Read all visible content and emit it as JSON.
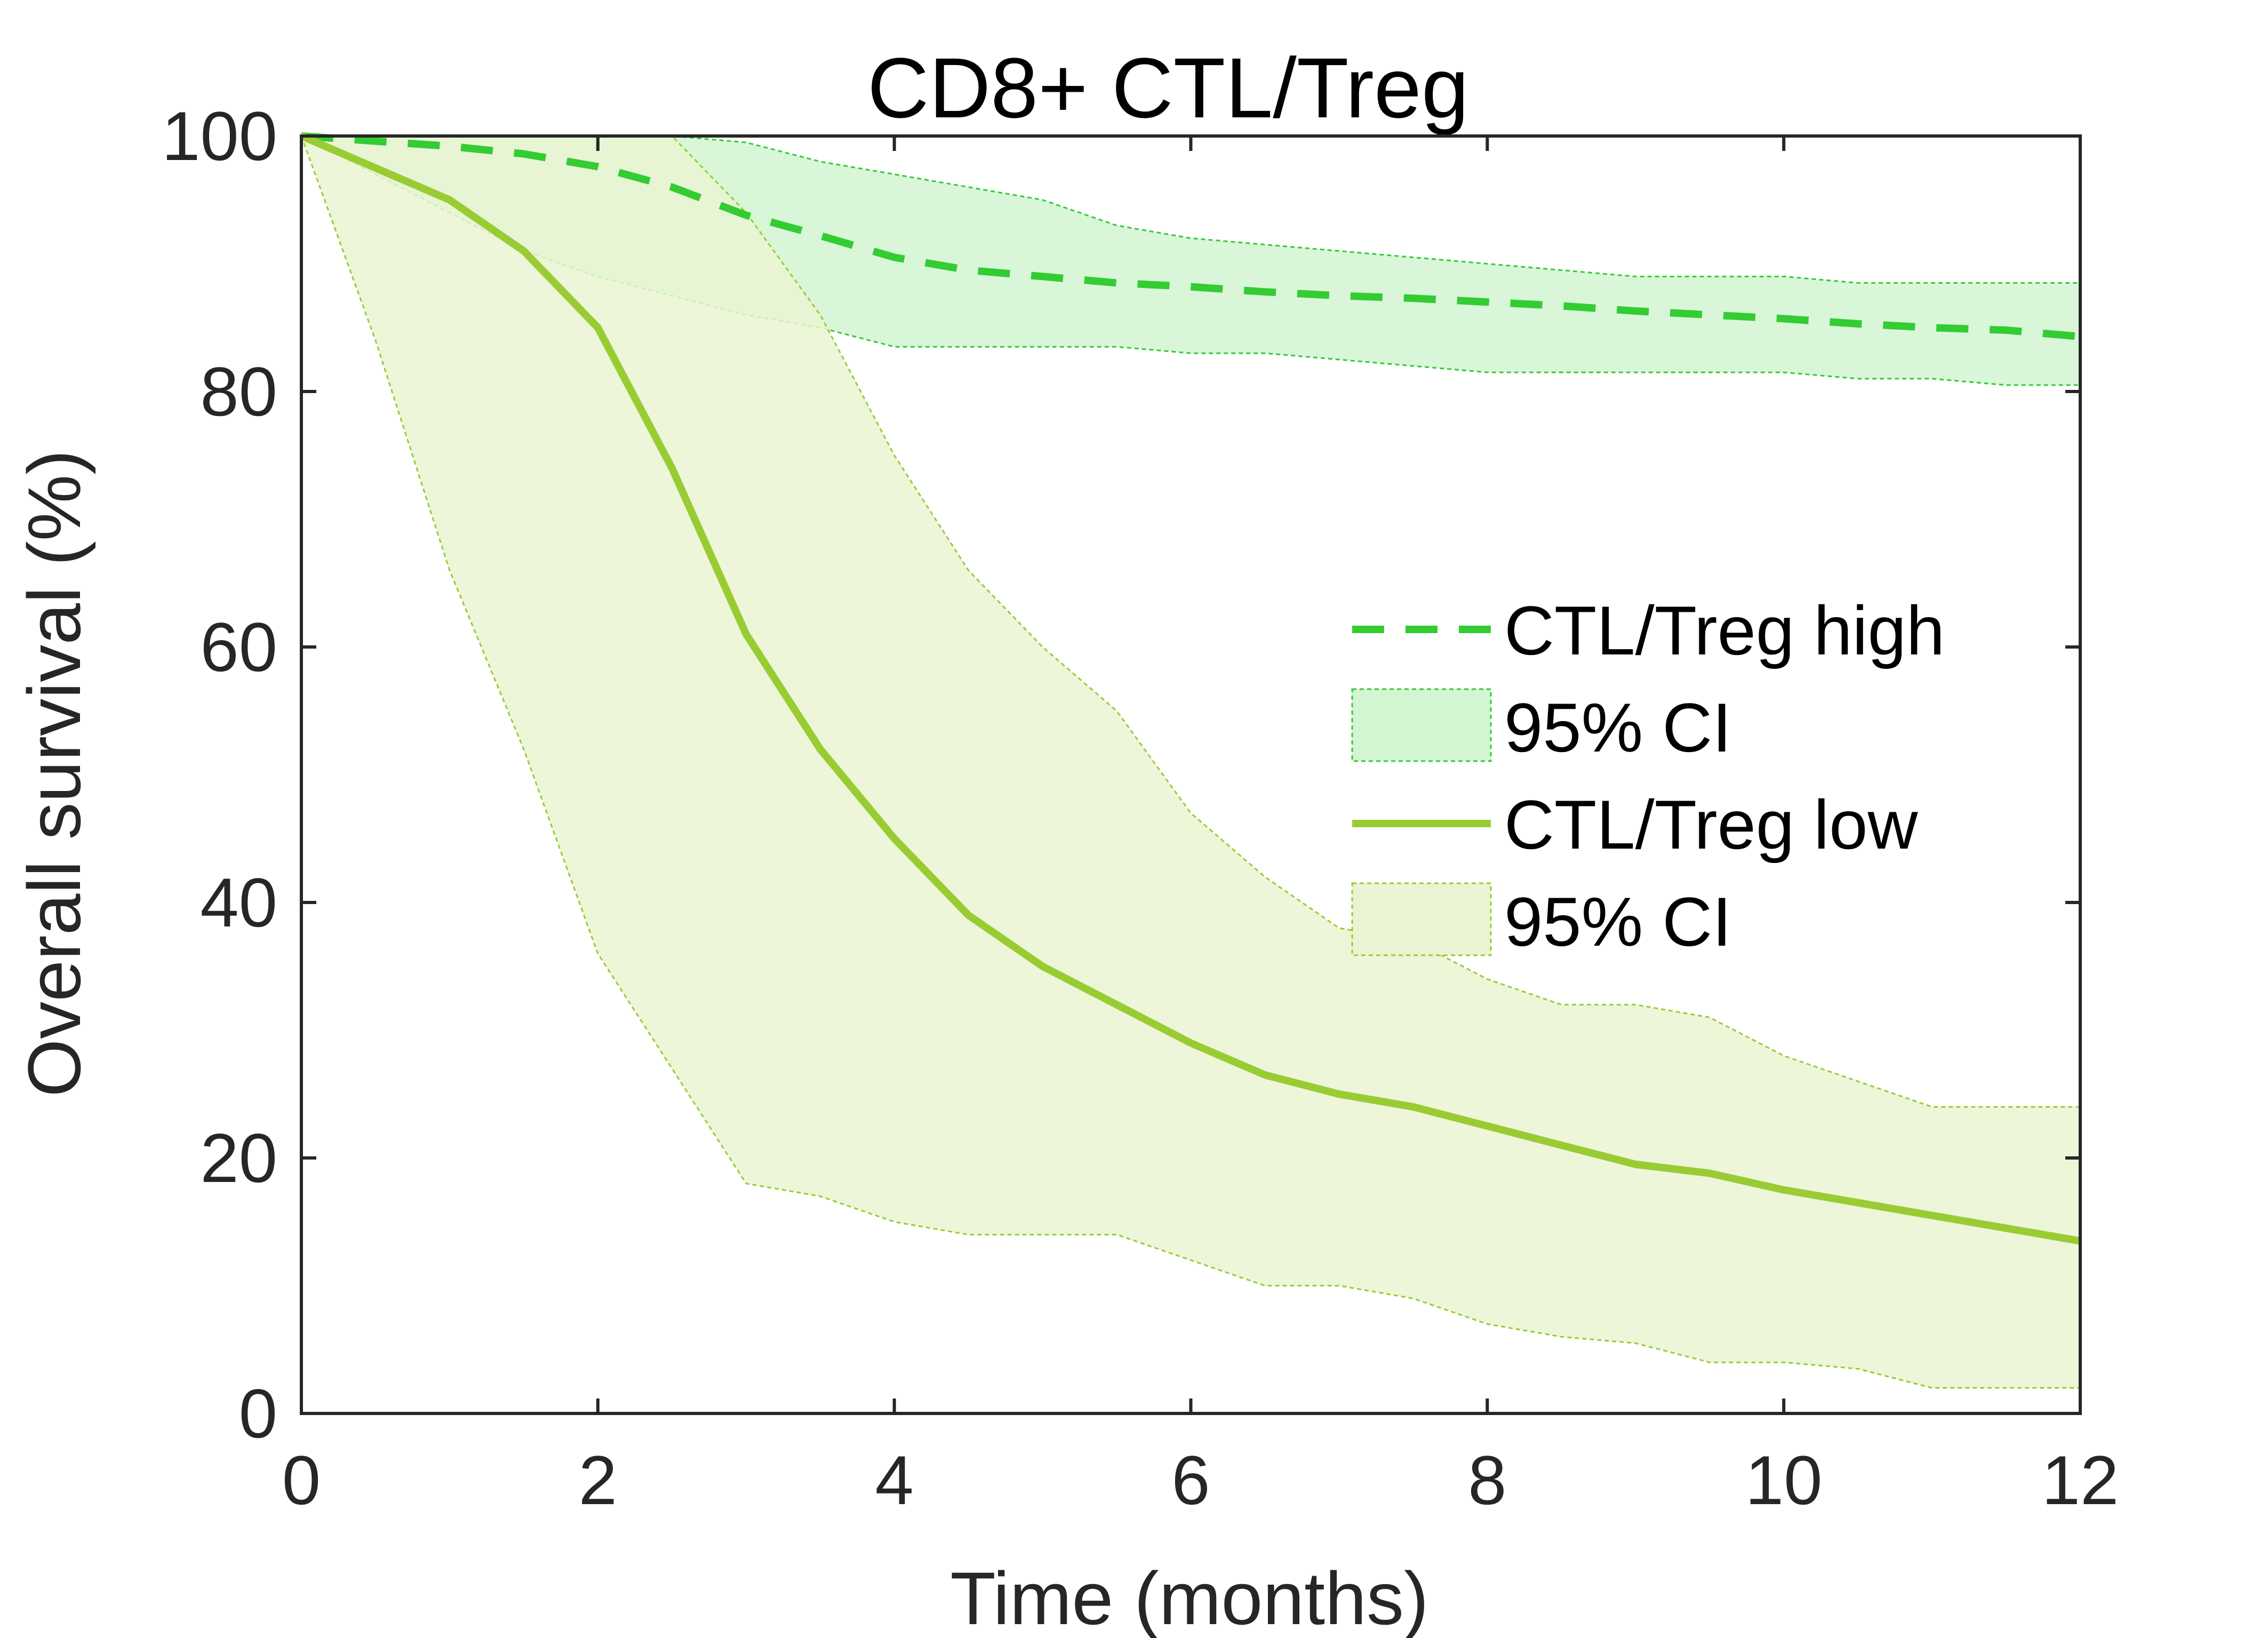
{
  "chart_data": {
    "type": "line",
    "title": "CD8+ CTL/Treg",
    "xlabel": "Time (months)",
    "ylabel": "Overall survival (%)",
    "xlim": [
      0,
      12
    ],
    "ylim": [
      0,
      100
    ],
    "xticks": [
      0,
      2,
      4,
      6,
      8,
      10,
      12
    ],
    "yticks": [
      0,
      20,
      40,
      60,
      80,
      100
    ],
    "grid": false,
    "legend_position": "right",
    "series": [
      {
        "name": "CTL/Treg high",
        "style": "dashed",
        "color": "#33CC33",
        "x": [
          0,
          0.5,
          1,
          1.5,
          2,
          2.5,
          3,
          3.5,
          4,
          4.5,
          5,
          5.5,
          6,
          6.5,
          7,
          7.5,
          8,
          8.5,
          9,
          9.5,
          10,
          10.5,
          11,
          11.5,
          12
        ],
        "y": [
          100,
          99.6,
          99.2,
          98.6,
          97.6,
          96,
          93.8,
          92.2,
          90.5,
          89.5,
          89,
          88.5,
          88.2,
          87.8,
          87.5,
          87.3,
          87,
          86.7,
          86.3,
          86,
          85.7,
          85.3,
          85,
          84.8,
          84.3
        ]
      },
      {
        "name": "95% CI",
        "style": "band",
        "color": "#D2F5D2",
        "x": [
          0,
          0.5,
          1,
          1.5,
          2,
          2.5,
          3,
          3.5,
          4,
          4.5,
          5,
          5.5,
          6,
          6.5,
          7,
          7.5,
          8,
          8.5,
          9,
          9.5,
          10,
          10.5,
          11,
          11.5,
          12
        ],
        "upper": [
          100,
          100,
          100,
          100,
          100,
          100,
          99.5,
          98,
          97,
          96,
          95,
          93,
          92,
          91.5,
          91,
          90.5,
          90,
          89.5,
          89,
          89,
          89,
          88.5,
          88.5,
          88.5,
          88.5
        ],
        "lower": [
          100,
          97,
          94,
          91,
          89,
          87.5,
          86,
          85,
          83.5,
          83.5,
          83.5,
          83.5,
          83,
          83,
          82.5,
          82,
          81.5,
          81.5,
          81.5,
          81.5,
          81.5,
          81,
          81,
          80.5,
          80.5
        ]
      },
      {
        "name": "CTL/Treg low",
        "style": "solid",
        "color": "#99CC33",
        "x": [
          0,
          0.5,
          1,
          1.5,
          2,
          2.5,
          3,
          3.5,
          4,
          4.5,
          5,
          5.5,
          6,
          6.5,
          7,
          7.5,
          8,
          8.5,
          9,
          9.5,
          10,
          10.5,
          11,
          11.5,
          12
        ],
        "y": [
          100,
          97.5,
          95,
          91,
          85,
          74,
          61,
          52,
          45,
          39,
          35,
          32,
          29,
          26.5,
          25,
          24,
          22.5,
          21,
          19.5,
          18.8,
          17.5,
          16.5,
          15.5,
          14.5,
          13.5
        ]
      },
      {
        "name": "95% CI",
        "style": "band",
        "color": "#EAF4D2",
        "x": [
          0,
          0.5,
          1,
          1.5,
          2,
          2.5,
          3,
          3.5,
          4,
          4.5,
          5,
          5.5,
          6,
          6.5,
          7,
          7.5,
          8,
          8.5,
          9,
          9.5,
          10,
          10.5,
          11,
          11.5,
          12
        ],
        "upper": [
          100,
          100,
          100,
          100,
          100,
          100,
          94,
          86,
          75,
          66,
          60,
          55,
          47,
          42,
          38,
          37,
          34,
          32,
          32,
          31,
          28,
          26,
          24,
          24,
          24
        ],
        "lower": [
          100,
          84,
          66,
          52,
          36,
          27,
          18,
          17,
          15,
          14,
          14,
          14,
          12,
          10,
          10,
          9,
          7,
          6,
          5.5,
          4,
          4,
          3.5,
          2,
          2,
          2
        ]
      }
    ]
  }
}
